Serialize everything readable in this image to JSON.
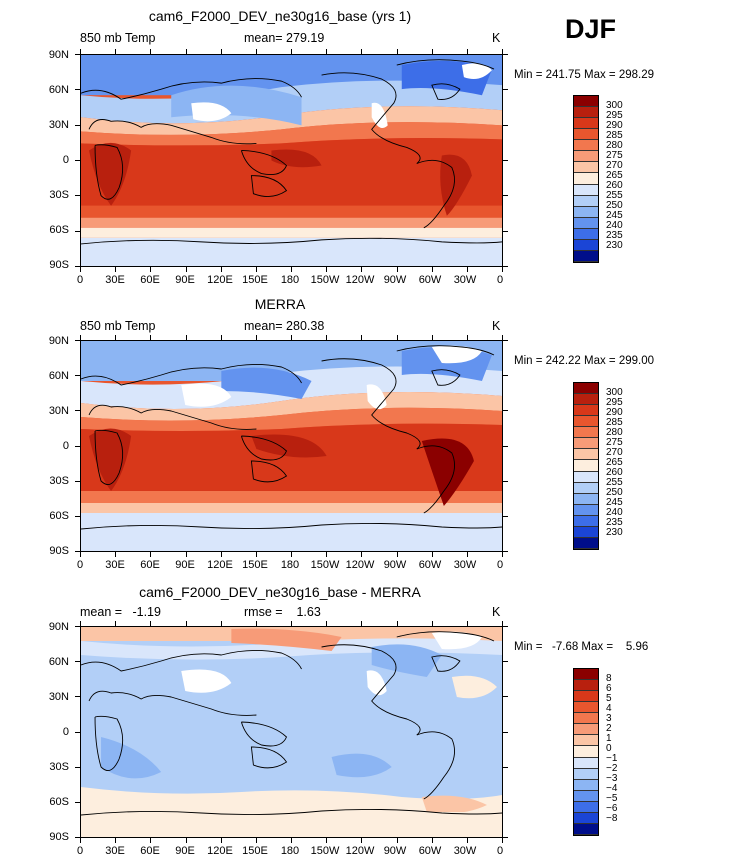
{
  "season": "DJF",
  "lat_labels": [
    "90N",
    "60N",
    "30N",
    "0",
    "30S",
    "60S",
    "90S"
  ],
  "lon_labels": [
    "0",
    "30E",
    "60E",
    "90E",
    "120E",
    "150E",
    "180",
    "150W",
    "120W",
    "90W",
    "60W",
    "30W",
    "0"
  ],
  "panels": [
    {
      "title": "cam6_F2000_DEV_ne30g16_base (yrs 1)",
      "left": "850 mb Temp",
      "center": "mean= 279.19",
      "units": "K",
      "minmax": "Min = 241.75 Max = 298.29",
      "levels": [
        "300",
        "295",
        "290",
        "285",
        "280",
        "275",
        "270",
        "265",
        "260",
        "255",
        "250",
        "245",
        "240",
        "235",
        "230"
      ],
      "colors": [
        "#8b0000",
        "#b8200e",
        "#d8381a",
        "#e8562e",
        "#f2774e",
        "#f79b78",
        "#fbc5a6",
        "#fdeede",
        "#d9e6fb",
        "#b2cff7",
        "#8cb5f3",
        "#6393ef",
        "#3d6ee8",
        "#1b45d6",
        "#000e8a"
      ]
    },
    {
      "title": "MERRA",
      "left": "850 mb Temp",
      "center": "mean= 280.38",
      "units": "K",
      "minmax": "Min = 242.22 Max = 299.00",
      "levels": [
        "300",
        "295",
        "290",
        "285",
        "280",
        "275",
        "270",
        "265",
        "260",
        "255",
        "250",
        "245",
        "240",
        "235",
        "230"
      ],
      "colors": [
        "#8b0000",
        "#b8200e",
        "#d8381a",
        "#e8562e",
        "#f2774e",
        "#f79b78",
        "#fbc5a6",
        "#fdeede",
        "#d9e6fb",
        "#b2cff7",
        "#8cb5f3",
        "#6393ef",
        "#3d6ee8",
        "#1b45d6",
        "#000e8a"
      ]
    },
    {
      "title": "cam6_F2000_DEV_ne30g16_base - MERRA",
      "left": "mean =   -1.19",
      "center": "rmse =    1.63",
      "units": "K",
      "minmax": "Min =   -7.68 Max =    5.96",
      "levels": [
        "8",
        "6",
        "5",
        "4",
        "3",
        "2",
        "1",
        "0",
        "−1",
        "−2",
        "−3",
        "−4",
        "−5",
        "−6",
        "−8"
      ],
      "colors": [
        "#8b0000",
        "#b8200e",
        "#d8381a",
        "#e8562e",
        "#f2774e",
        "#f79b78",
        "#fbc5a6",
        "#fdeede",
        "#d9e6fb",
        "#b2cff7",
        "#8cb5f3",
        "#6393ef",
        "#3d6ee8",
        "#1b45d6",
        "#000e8a"
      ]
    }
  ]
}
